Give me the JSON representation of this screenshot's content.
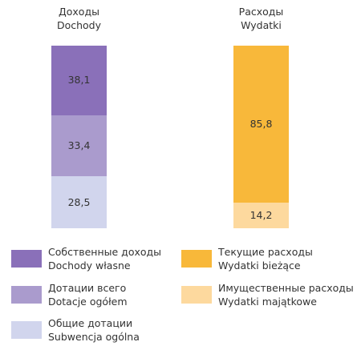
{
  "chart_data": {
    "type": "bar",
    "stacked": true,
    "categories": [
      "Доходы\nDochody",
      "Расходы\nWydatki"
    ],
    "ylim": [
      0,
      100
    ],
    "series": [
      {
        "name": "Собственные доходы\nDochody własne",
        "color": "#8a70b9",
        "values": [
          38.1,
          null
        ],
        "value_labels": [
          "38,1",
          null
        ]
      },
      {
        "name": "Дотации всего\nDotacje ogółem",
        "color": "#aa9bcd",
        "values": [
          33.4,
          null
        ],
        "value_labels": [
          "33,4",
          null
        ]
      },
      {
        "name": "Общие дотации\nSubwencja ogólna",
        "color": "#d1d5ed",
        "values": [
          28.5,
          null
        ],
        "value_labels": [
          "28,5",
          null
        ]
      },
      {
        "name": "Текущие расходы\nWydatki bieżące",
        "color": "#f8b83a",
        "values": [
          null,
          85.8
        ],
        "value_labels": [
          null,
          "85,8"
        ]
      },
      {
        "name": "Имущественные расходы\nWydatki majątkowe",
        "color": "#fdd99e",
        "values": [
          null,
          14.2
        ],
        "value_labels": [
          null,
          "14,2"
        ]
      }
    ]
  }
}
